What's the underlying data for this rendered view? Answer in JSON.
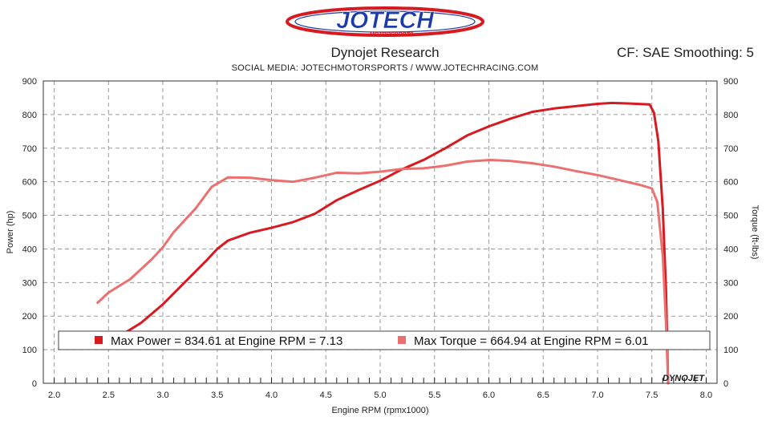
{
  "header": {
    "brand": "JOTECH",
    "brand_sub": "MOTORSPORTS",
    "title": "Dynojet Research",
    "subtitle": "SOCIAL MEDIA: JOTECHMOTORSPORTS    /    WWW.JOTECHRACING.COM",
    "cf_info": "CF: SAE Smoothing: 5"
  },
  "watermark": "DYNOJET",
  "colors": {
    "power": "#d71920",
    "torque": "#ec7070",
    "brand_red": "#d71920",
    "brand_blue": "#1c3aa9"
  },
  "legend": {
    "power": "Max Power = 834.61 at Engine RPM = 7.13",
    "torque": "Max Torque = 664.94 at Engine RPM = 6.01"
  },
  "chart_data": {
    "type": "line",
    "title": "Dynojet Research",
    "xlabel": "Engine RPM (rpmx1000)",
    "ylabel_left": "Power (hp)",
    "ylabel_right": "Torque (ft-lbs)",
    "xlim": [
      1.9,
      8.1
    ],
    "ylim": [
      0,
      900
    ],
    "x_ticks": [
      "2.0",
      "2.5",
      "3.0",
      "3.5",
      "4.0",
      "4.5",
      "5.0",
      "5.5",
      "6.0",
      "6.5",
      "7.0",
      "7.5",
      "8.0"
    ],
    "y_ticks": [
      "0",
      "100",
      "200",
      "300",
      "400",
      "500",
      "600",
      "700",
      "800",
      "900"
    ],
    "grid": "dashed",
    "series": [
      {
        "name": "Power",
        "axis": "left",
        "points": [
          [
            2.65,
            150
          ],
          [
            2.8,
            180
          ],
          [
            3.0,
            235
          ],
          [
            3.2,
            300
          ],
          [
            3.4,
            365
          ],
          [
            3.5,
            400
          ],
          [
            3.6,
            425
          ],
          [
            3.8,
            448
          ],
          [
            4.0,
            463
          ],
          [
            4.2,
            480
          ],
          [
            4.4,
            505
          ],
          [
            4.6,
            545
          ],
          [
            4.8,
            575
          ],
          [
            5.0,
            603
          ],
          [
            5.2,
            637
          ],
          [
            5.4,
            665
          ],
          [
            5.6,
            700
          ],
          [
            5.8,
            738
          ],
          [
            6.0,
            765
          ],
          [
            6.2,
            788
          ],
          [
            6.4,
            808
          ],
          [
            6.6,
            818
          ],
          [
            6.8,
            825
          ],
          [
            7.0,
            832
          ],
          [
            7.13,
            834.61
          ],
          [
            7.3,
            833
          ],
          [
            7.48,
            830
          ],
          [
            7.52,
            805
          ],
          [
            7.56,
            720
          ],
          [
            7.6,
            520
          ],
          [
            7.63,
            280
          ],
          [
            7.65,
            0
          ]
        ]
      },
      {
        "name": "Torque",
        "axis": "right",
        "points": [
          [
            2.4,
            240
          ],
          [
            2.5,
            270
          ],
          [
            2.7,
            310
          ],
          [
            2.9,
            370
          ],
          [
            3.0,
            405
          ],
          [
            3.1,
            450
          ],
          [
            3.3,
            520
          ],
          [
            3.45,
            585
          ],
          [
            3.6,
            613
          ],
          [
            3.8,
            612
          ],
          [
            4.0,
            605
          ],
          [
            4.2,
            600
          ],
          [
            4.4,
            612
          ],
          [
            4.6,
            627
          ],
          [
            4.8,
            625
          ],
          [
            5.0,
            630
          ],
          [
            5.2,
            638
          ],
          [
            5.4,
            640
          ],
          [
            5.6,
            648
          ],
          [
            5.8,
            660
          ],
          [
            6.01,
            664.94
          ],
          [
            6.2,
            662
          ],
          [
            6.4,
            655
          ],
          [
            6.6,
            645
          ],
          [
            6.8,
            632
          ],
          [
            7.0,
            620
          ],
          [
            7.2,
            605
          ],
          [
            7.4,
            590
          ],
          [
            7.5,
            580
          ],
          [
            7.55,
            540
          ],
          [
            7.6,
            380
          ],
          [
            7.63,
            180
          ],
          [
            7.65,
            0
          ]
        ]
      }
    ]
  }
}
